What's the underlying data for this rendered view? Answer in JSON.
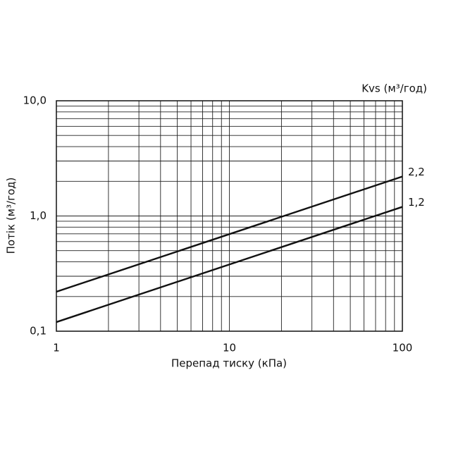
{
  "chart_data": {
    "type": "line",
    "xlabel": "Перепад тиску (кПа)",
    "ylabel": "Потік (м³/год)",
    "legend_title": "Kvs (м³/год)",
    "x": [
      1,
      100
    ],
    "series": [
      {
        "name": "2,2",
        "color": "#111111",
        "values": [
          0.22,
          2.2
        ]
      },
      {
        "name": "1,2",
        "color": "#111111",
        "values": [
          0.12,
          1.2
        ]
      }
    ],
    "xlim": [
      1,
      100
    ],
    "xticks": [
      1,
      10,
      100
    ],
    "ylim": [
      0.1,
      10
    ],
    "yticks": [
      {
        "value": 0.1,
        "label": "0,1"
      },
      {
        "value": 1,
        "label": "1,0"
      },
      {
        "value": 10,
        "label": "10,0"
      }
    ],
    "xscale": "log",
    "yscale": "log",
    "grid": true,
    "minor_grid": true
  }
}
